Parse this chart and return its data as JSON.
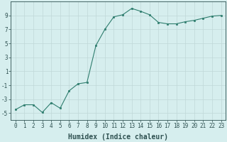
{
  "x": [
    0,
    1,
    2,
    3,
    4,
    5,
    6,
    7,
    8,
    9,
    10,
    11,
    12,
    13,
    14,
    15,
    16,
    17,
    18,
    19,
    20,
    21,
    22,
    23
  ],
  "y": [
    -4.5,
    -3.8,
    -3.8,
    -4.9,
    -3.5,
    -4.3,
    -1.8,
    -0.8,
    -0.6,
    4.7,
    7.0,
    8.8,
    9.1,
    10.0,
    9.6,
    9.1,
    8.0,
    7.8,
    7.8,
    8.1,
    8.3,
    8.6,
    8.9,
    9.0
  ],
  "line_color": "#2e7d6e",
  "marker": "s",
  "markersize": 1.5,
  "linewidth": 0.8,
  "xlabel": "Humidex (Indice chaleur)",
  "xlim": [
    -0.5,
    23.5
  ],
  "ylim": [
    -6,
    11
  ],
  "yticks": [
    -5,
    -3,
    -1,
    1,
    3,
    5,
    7,
    9
  ],
  "xticks": [
    0,
    1,
    2,
    3,
    4,
    5,
    6,
    7,
    8,
    9,
    10,
    11,
    12,
    13,
    14,
    15,
    16,
    17,
    18,
    19,
    20,
    21,
    22,
    23
  ],
  "xtick_labels": [
    "0",
    "1",
    "2",
    "3",
    "4",
    "5",
    "6",
    "7",
    "8",
    "9",
    "10",
    "11",
    "12",
    "13",
    "14",
    "15",
    "16",
    "17",
    "18",
    "19",
    "20",
    "21",
    "22",
    "23"
  ],
  "bg_color": "#d6eeee",
  "grid_color": "#c0d8d8",
  "tick_fontsize": 5.5,
  "xlabel_fontsize": 7.0,
  "tick_color": "#2e5050",
  "spine_color": "#2e5050"
}
